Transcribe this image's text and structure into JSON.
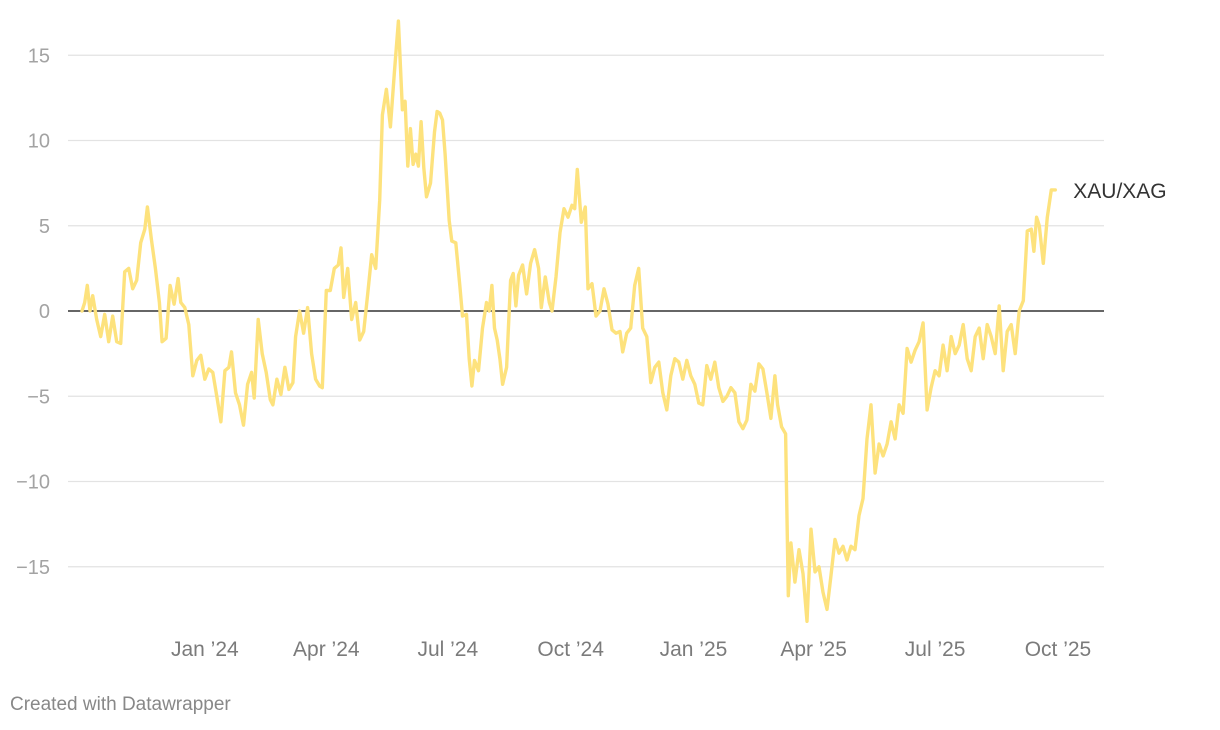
{
  "chart_data": {
    "type": "line",
    "xlabel": "",
    "ylabel": "",
    "ylim": [
      -18.5,
      17
    ],
    "xlim": [
      "2023-10-01",
      "2025-10-22"
    ],
    "grid": true,
    "legend": "inline-right-end",
    "y_ticks": [
      15,
      10,
      5,
      0,
      -5,
      -10,
      -15
    ],
    "y_tick_labels": [
      "15",
      "10",
      "5",
      "0",
      "−5",
      "−10",
      "−15"
    ],
    "x_ticks": [
      {
        "date": "2024-01-01",
        "label": "Jan ’24"
      },
      {
        "date": "2024-04-01",
        "label": "Apr ’24"
      },
      {
        "date": "2024-07-01",
        "label": "Jul ’24"
      },
      {
        "date": "2024-10-01",
        "label": "Oct ’24"
      },
      {
        "date": "2025-01-01",
        "label": "Jan ’25"
      },
      {
        "date": "2025-04-01",
        "label": "Apr ’25"
      },
      {
        "date": "2025-07-01",
        "label": "Jul ’25"
      },
      {
        "date": "2025-10-01",
        "label": "Oct ’25"
      }
    ],
    "series": [
      {
        "name": "XAU/XAG",
        "color": "#fde27d",
        "points": [
          [
            "2023-10-01",
            0.0
          ],
          [
            "2023-10-03",
            0.5
          ],
          [
            "2023-10-05",
            1.5
          ],
          [
            "2023-10-07",
            0.0
          ],
          [
            "2023-10-09",
            0.9
          ],
          [
            "2023-10-12",
            -0.5
          ],
          [
            "2023-10-15",
            -1.5
          ],
          [
            "2023-10-18",
            -0.2
          ],
          [
            "2023-10-21",
            -1.8
          ],
          [
            "2023-10-24",
            -0.3
          ],
          [
            "2023-10-27",
            -1.8
          ],
          [
            "2023-10-30",
            -1.9
          ],
          [
            "2023-11-02",
            2.3
          ],
          [
            "2023-11-05",
            2.5
          ],
          [
            "2023-11-08",
            1.3
          ],
          [
            "2023-11-11",
            1.8
          ],
          [
            "2023-11-14",
            4.0
          ],
          [
            "2023-11-17",
            4.8
          ],
          [
            "2023-11-19",
            6.1
          ],
          [
            "2023-11-22",
            4.2
          ],
          [
            "2023-11-25",
            2.5
          ],
          [
            "2023-11-28",
            0.5
          ],
          [
            "2023-11-30",
            -1.8
          ],
          [
            "2023-12-03",
            -1.6
          ],
          [
            "2023-12-06",
            1.5
          ],
          [
            "2023-12-09",
            0.4
          ],
          [
            "2023-12-12",
            1.9
          ],
          [
            "2023-12-14",
            0.5
          ],
          [
            "2023-12-17",
            0.2
          ],
          [
            "2023-12-20",
            -0.8
          ],
          [
            "2023-12-23",
            -3.8
          ],
          [
            "2023-12-26",
            -2.9
          ],
          [
            "2023-12-29",
            -2.6
          ],
          [
            "2024-01-01",
            -4.0
          ],
          [
            "2024-01-04",
            -3.4
          ],
          [
            "2024-01-07",
            -3.6
          ],
          [
            "2024-01-10",
            -5.0
          ],
          [
            "2024-01-13",
            -6.5
          ],
          [
            "2024-01-16",
            -3.5
          ],
          [
            "2024-01-19",
            -3.3
          ],
          [
            "2024-01-21",
            -2.4
          ],
          [
            "2024-01-24",
            -4.8
          ],
          [
            "2024-01-27",
            -5.5
          ],
          [
            "2024-01-30",
            -6.7
          ],
          [
            "2024-02-02",
            -4.3
          ],
          [
            "2024-02-05",
            -3.6
          ],
          [
            "2024-02-07",
            -5.1
          ],
          [
            "2024-02-10",
            -0.5
          ],
          [
            "2024-02-13",
            -2.5
          ],
          [
            "2024-02-16",
            -3.6
          ],
          [
            "2024-02-19",
            -5.2
          ],
          [
            "2024-02-21",
            -5.5
          ],
          [
            "2024-02-24",
            -4.0
          ],
          [
            "2024-02-27",
            -4.9
          ],
          [
            "2024-03-01",
            -3.3
          ],
          [
            "2024-03-04",
            -4.6
          ],
          [
            "2024-03-07",
            -4.2
          ],
          [
            "2024-03-09",
            -1.5
          ],
          [
            "2024-03-12",
            0.0
          ],
          [
            "2024-03-15",
            -1.3
          ],
          [
            "2024-03-18",
            0.2
          ],
          [
            "2024-03-21",
            -2.5
          ],
          [
            "2024-03-24",
            -4.0
          ],
          [
            "2024-03-27",
            -4.4
          ],
          [
            "2024-03-29",
            -4.5
          ],
          [
            "2024-04-01",
            1.2
          ],
          [
            "2024-04-04",
            1.2
          ],
          [
            "2024-04-07",
            2.5
          ],
          [
            "2024-04-10",
            2.7
          ],
          [
            "2024-04-12",
            3.7
          ],
          [
            "2024-04-14",
            0.8
          ],
          [
            "2024-04-17",
            2.5
          ],
          [
            "2024-04-20",
            -0.5
          ],
          [
            "2024-04-23",
            0.5
          ],
          [
            "2024-04-26",
            -1.7
          ],
          [
            "2024-04-29",
            -1.2
          ],
          [
            "2024-05-02",
            1.0
          ],
          [
            "2024-05-05",
            3.3
          ],
          [
            "2024-05-08",
            2.5
          ],
          [
            "2024-05-11",
            6.5
          ],
          [
            "2024-05-13",
            11.5
          ],
          [
            "2024-05-16",
            13.0
          ],
          [
            "2024-05-19",
            10.8
          ],
          [
            "2024-05-22",
            14.0
          ],
          [
            "2024-05-25",
            17.0
          ],
          [
            "2024-05-28",
            11.8
          ],
          [
            "2024-05-30",
            12.3
          ],
          [
            "2024-06-01",
            8.5
          ],
          [
            "2024-06-03",
            10.7
          ],
          [
            "2024-06-05",
            8.6
          ],
          [
            "2024-06-07",
            9.2
          ],
          [
            "2024-06-09",
            8.5
          ],
          [
            "2024-06-11",
            11.1
          ],
          [
            "2024-06-13",
            8.4
          ],
          [
            "2024-06-15",
            6.7
          ],
          [
            "2024-06-18",
            7.5
          ],
          [
            "2024-06-21",
            10.5
          ],
          [
            "2024-06-23",
            11.7
          ],
          [
            "2024-06-25",
            11.6
          ],
          [
            "2024-06-27",
            11.2
          ],
          [
            "2024-06-29",
            9.2
          ],
          [
            "2024-07-02",
            5.3
          ],
          [
            "2024-07-04",
            4.1
          ],
          [
            "2024-07-07",
            4.0
          ],
          [
            "2024-07-10",
            1.5
          ],
          [
            "2024-07-12",
            -0.3
          ],
          [
            "2024-07-15",
            -0.2
          ],
          [
            "2024-07-17",
            -2.8
          ],
          [
            "2024-07-19",
            -4.4
          ],
          [
            "2024-07-21",
            -2.9
          ],
          [
            "2024-07-24",
            -3.5
          ],
          [
            "2024-07-27",
            -1.0
          ],
          [
            "2024-07-30",
            0.5
          ],
          [
            "2024-08-01",
            0.0
          ],
          [
            "2024-08-03",
            1.5
          ],
          [
            "2024-08-05",
            -1.0
          ],
          [
            "2024-08-07",
            -1.7
          ],
          [
            "2024-08-09",
            -2.8
          ],
          [
            "2024-08-11",
            -4.3
          ],
          [
            "2024-08-14",
            -3.3
          ],
          [
            "2024-08-17",
            1.8
          ],
          [
            "2024-08-19",
            2.2
          ],
          [
            "2024-08-21",
            0.3
          ],
          [
            "2024-08-23",
            2.1
          ],
          [
            "2024-08-26",
            2.7
          ],
          [
            "2024-08-29",
            1.0
          ],
          [
            "2024-09-01",
            2.8
          ],
          [
            "2024-09-04",
            3.6
          ],
          [
            "2024-09-07",
            2.5
          ],
          [
            "2024-09-09",
            0.2
          ],
          [
            "2024-09-12",
            2.0
          ],
          [
            "2024-09-15",
            0.5
          ],
          [
            "2024-09-17",
            0.0
          ],
          [
            "2024-09-20",
            2.0
          ],
          [
            "2024-09-23",
            4.6
          ],
          [
            "2024-09-26",
            6.0
          ],
          [
            "2024-09-29",
            5.5
          ],
          [
            "2024-10-02",
            6.2
          ],
          [
            "2024-10-04",
            6.0
          ],
          [
            "2024-10-06",
            8.3
          ],
          [
            "2024-10-09",
            5.2
          ],
          [
            "2024-10-12",
            6.1
          ],
          [
            "2024-10-14",
            1.3
          ],
          [
            "2024-10-17",
            1.6
          ],
          [
            "2024-10-20",
            -0.3
          ],
          [
            "2024-10-23",
            0.0
          ],
          [
            "2024-10-26",
            1.3
          ],
          [
            "2024-10-29",
            0.4
          ],
          [
            "2024-11-01",
            -1.1
          ],
          [
            "2024-11-04",
            -1.3
          ],
          [
            "2024-11-07",
            -1.2
          ],
          [
            "2024-11-09",
            -2.4
          ],
          [
            "2024-11-12",
            -1.3
          ],
          [
            "2024-11-15",
            -1.0
          ],
          [
            "2024-11-18",
            1.5
          ],
          [
            "2024-11-21",
            2.5
          ],
          [
            "2024-11-24",
            -1.0
          ],
          [
            "2024-11-27",
            -1.5
          ],
          [
            "2024-11-30",
            -4.2
          ],
          [
            "2024-12-03",
            -3.3
          ],
          [
            "2024-12-06",
            -3.0
          ],
          [
            "2024-12-09",
            -4.8
          ],
          [
            "2024-12-12",
            -5.8
          ],
          [
            "2024-12-15",
            -3.8
          ],
          [
            "2024-12-18",
            -2.8
          ],
          [
            "2024-12-21",
            -3.0
          ],
          [
            "2024-12-24",
            -4.0
          ],
          [
            "2024-12-27",
            -2.9
          ],
          [
            "2024-12-30",
            -3.8
          ],
          [
            "2025-01-02",
            -4.3
          ],
          [
            "2025-01-05",
            -5.4
          ],
          [
            "2025-01-08",
            -5.5
          ],
          [
            "2025-01-11",
            -3.2
          ],
          [
            "2025-01-14",
            -4.0
          ],
          [
            "2025-01-17",
            -3.0
          ],
          [
            "2025-01-20",
            -4.5
          ],
          [
            "2025-01-23",
            -5.3
          ],
          [
            "2025-01-26",
            -5.0
          ],
          [
            "2025-01-29",
            -4.5
          ],
          [
            "2025-02-01",
            -4.8
          ],
          [
            "2025-02-04",
            -6.5
          ],
          [
            "2025-02-07",
            -6.9
          ],
          [
            "2025-02-10",
            -6.4
          ],
          [
            "2025-02-13",
            -4.3
          ],
          [
            "2025-02-16",
            -4.7
          ],
          [
            "2025-02-19",
            -3.1
          ],
          [
            "2025-02-22",
            -3.4
          ],
          [
            "2025-02-25",
            -4.8
          ],
          [
            "2025-02-28",
            -6.3
          ],
          [
            "2025-03-03",
            -3.8
          ],
          [
            "2025-03-05",
            -5.5
          ],
          [
            "2025-03-08",
            -6.8
          ],
          [
            "2025-03-11",
            -7.2
          ],
          [
            "2025-03-13",
            -16.7
          ],
          [
            "2025-03-15",
            -13.6
          ],
          [
            "2025-03-18",
            -15.9
          ],
          [
            "2025-03-21",
            -14.0
          ],
          [
            "2025-03-24",
            -15.4
          ],
          [
            "2025-03-27",
            -18.2
          ],
          [
            "2025-03-30",
            -12.8
          ],
          [
            "2025-04-02",
            -15.3
          ],
          [
            "2025-04-05",
            -15.0
          ],
          [
            "2025-04-08",
            -16.5
          ],
          [
            "2025-04-11",
            -17.5
          ],
          [
            "2025-04-14",
            -15.5
          ],
          [
            "2025-04-17",
            -13.4
          ],
          [
            "2025-04-20",
            -14.2
          ],
          [
            "2025-04-23",
            -13.8
          ],
          [
            "2025-04-26",
            -14.6
          ],
          [
            "2025-04-29",
            -13.8
          ],
          [
            "2025-05-02",
            -14.0
          ],
          [
            "2025-05-05",
            -12.0
          ],
          [
            "2025-05-08",
            -11.0
          ],
          [
            "2025-05-11",
            -7.5
          ],
          [
            "2025-05-14",
            -5.5
          ],
          [
            "2025-05-17",
            -9.5
          ],
          [
            "2025-05-20",
            -7.8
          ],
          [
            "2025-05-23",
            -8.5
          ],
          [
            "2025-05-26",
            -7.8
          ],
          [
            "2025-05-29",
            -6.5
          ],
          [
            "2025-06-01",
            -7.5
          ],
          [
            "2025-06-04",
            -5.5
          ],
          [
            "2025-06-07",
            -6.0
          ],
          [
            "2025-06-10",
            -2.2
          ],
          [
            "2025-06-13",
            -3.0
          ],
          [
            "2025-06-16",
            -2.3
          ],
          [
            "2025-06-19",
            -1.8
          ],
          [
            "2025-06-22",
            -0.7
          ],
          [
            "2025-06-25",
            -5.8
          ],
          [
            "2025-06-28",
            -4.5
          ],
          [
            "2025-07-01",
            -3.5
          ],
          [
            "2025-07-04",
            -3.8
          ],
          [
            "2025-07-07",
            -2.0
          ],
          [
            "2025-07-10",
            -3.5
          ],
          [
            "2025-07-13",
            -1.5
          ],
          [
            "2025-07-16",
            -2.5
          ],
          [
            "2025-07-19",
            -2.0
          ],
          [
            "2025-07-22",
            -0.8
          ],
          [
            "2025-07-25",
            -2.8
          ],
          [
            "2025-07-28",
            -3.5
          ],
          [
            "2025-07-31",
            -1.5
          ],
          [
            "2025-08-03",
            -1.0
          ],
          [
            "2025-08-06",
            -2.8
          ],
          [
            "2025-08-09",
            -0.8
          ],
          [
            "2025-08-12",
            -1.5
          ],
          [
            "2025-08-15",
            -2.5
          ],
          [
            "2025-08-18",
            0.3
          ],
          [
            "2025-08-21",
            -3.5
          ],
          [
            "2025-08-24",
            -1.2
          ],
          [
            "2025-08-27",
            -0.8
          ],
          [
            "2025-08-30",
            -2.5
          ],
          [
            "2025-09-02",
            0.0
          ],
          [
            "2025-09-05",
            0.6
          ],
          [
            "2025-09-08",
            4.7
          ],
          [
            "2025-09-11",
            4.8
          ],
          [
            "2025-09-13",
            3.5
          ],
          [
            "2025-09-15",
            5.5
          ],
          [
            "2025-09-17",
            5.0
          ],
          [
            "2025-09-20",
            2.8
          ],
          [
            "2025-09-23",
            5.5
          ],
          [
            "2025-09-26",
            7.1
          ],
          [
            "2025-09-29",
            7.1
          ]
        ]
      }
    ]
  },
  "footer": {
    "credit": "Created with Datawrapper"
  }
}
